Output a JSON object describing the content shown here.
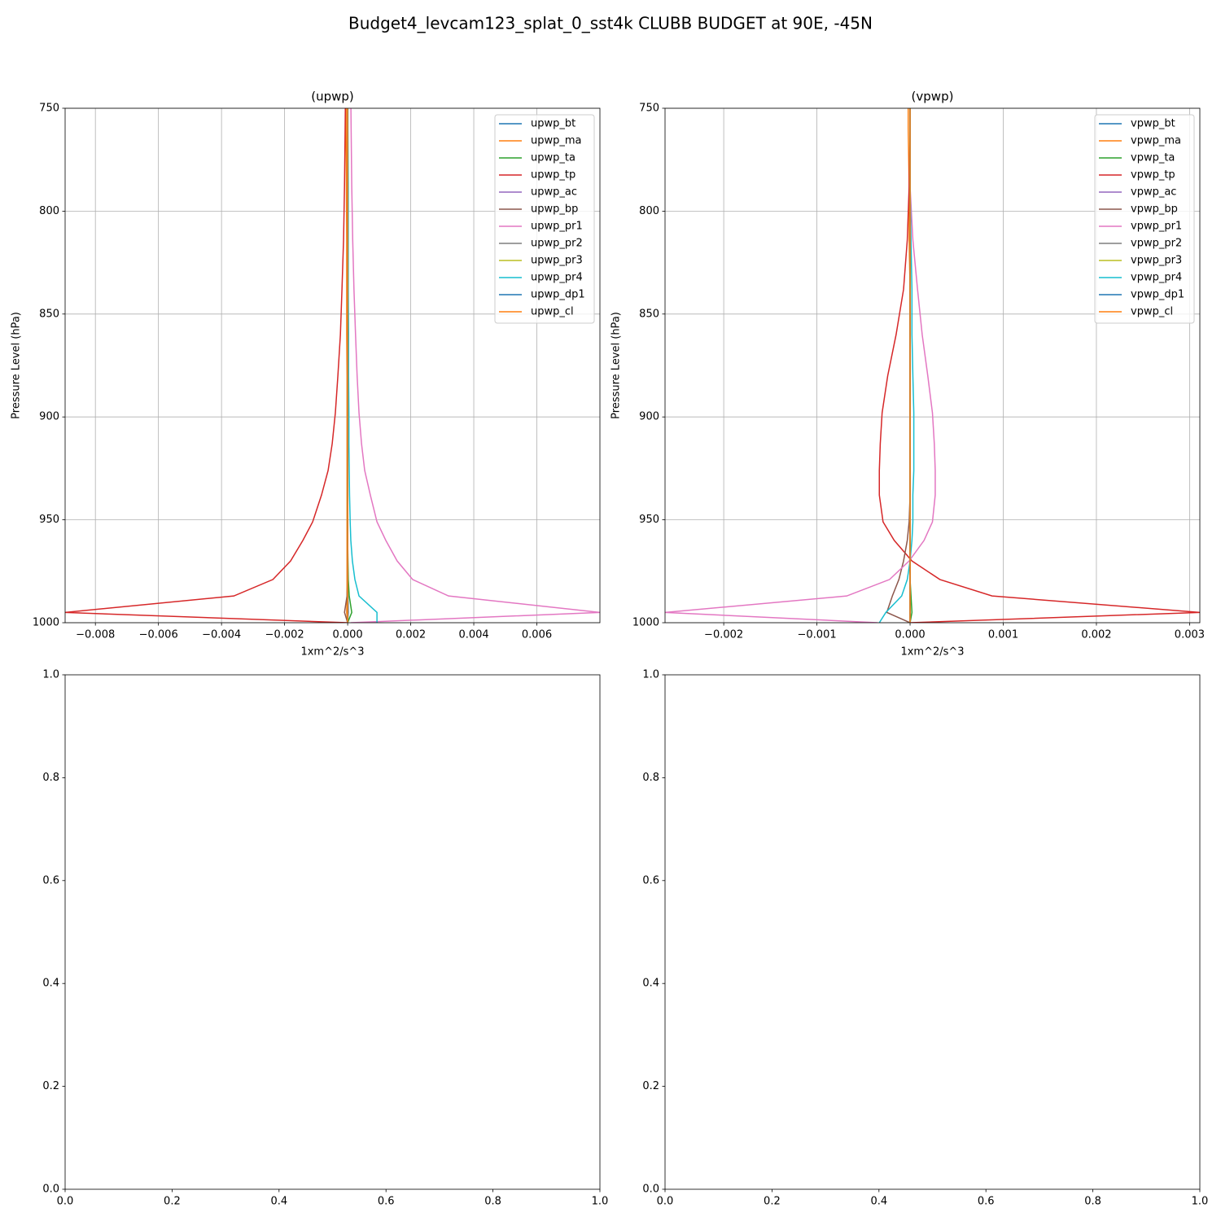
{
  "title": "Budget4_levcam123_splat_0_sst4k CLUBB BUDGET at 90E, -45N",
  "chart_data": [
    {
      "type": "line",
      "title": "(upwp)",
      "xlabel": "1xm^2/s^3",
      "ylabel": "Pressure Level (hPa)",
      "xlim": [
        -0.00896,
        0.008
      ],
      "ylim": [
        1000,
        750
      ],
      "xticks": [
        {
          "value": -0.008,
          "label": "−0.008"
        },
        {
          "value": -0.006,
          "label": "−0.006"
        },
        {
          "value": -0.004,
          "label": "−0.004"
        },
        {
          "value": -0.002,
          "label": "−0.002"
        },
        {
          "value": 0,
          "label": "0.000"
        },
        0.002,
        0.004,
        0.006
      ],
      "yticks": [
        750,
        800,
        850,
        900,
        950,
        1000
      ],
      "grid": true,
      "legend": "upper right",
      "y": [
        1000,
        995,
        987,
        979,
        970,
        960,
        951,
        938,
        926,
        913,
        898,
        880,
        860,
        838,
        814,
        788,
        760,
        745
      ],
      "series": [
        {
          "name": "upwp_bt",
          "color": "#1f77b4",
          "values": [
            0,
            2e-05,
            1e-05,
            0,
            0,
            0,
            0,
            0,
            0,
            0,
            0,
            0,
            0,
            0,
            0,
            0,
            0,
            0
          ]
        },
        {
          "name": "upwp_ma",
          "color": "#ff7f0e",
          "values": [
            0,
            -3e-05,
            -2e-05,
            -2e-05,
            -2e-05,
            -2e-05,
            -2e-05,
            -2e-05,
            -2e-05,
            -2e-05,
            -2e-05,
            -2e-05,
            -3e-05,
            -3e-05,
            -3e-05,
            -4e-05,
            -5e-05,
            -5e-05
          ]
        },
        {
          "name": "upwp_ta",
          "color": "#2ca02c",
          "values": [
            0,
            0.00013,
            5e-05,
            2e-05,
            1e-05,
            0,
            0,
            0,
            0,
            0,
            0,
            0,
            0,
            0,
            0,
            0,
            0,
            0
          ]
        },
        {
          "name": "upwp_tp",
          "color": "#d62728",
          "values": [
            0,
            -0.00896,
            -0.00361,
            -0.00237,
            -0.00181,
            -0.00142,
            -0.00111,
            -0.00083,
            -0.00062,
            -0.00049,
            -0.00039,
            -0.00031,
            -0.00023,
            -0.00018,
            -0.00013,
            -0.0001,
            -8e-05,
            -7e-05
          ]
        },
        {
          "name": "upwp_ac",
          "color": "#9467bd",
          "values": [
            0,
            0,
            0,
            0,
            0,
            0,
            0,
            0,
            0,
            0,
            0,
            0,
            0,
            0,
            0,
            0,
            0,
            0
          ]
        },
        {
          "name": "upwp_bp",
          "color": "#8c564b",
          "values": [
            0,
            -0.0001,
            -2e-05,
            0,
            0,
            0,
            0,
            0,
            0,
            0,
            0,
            0,
            0,
            0,
            0,
            0,
            0,
            0
          ]
        },
        {
          "name": "upwp_pr1",
          "color": "#e377c2",
          "values": [
            0.0001,
            0.008,
            0.0032,
            0.00206,
            0.00157,
            0.00121,
            0.00093,
            0.00072,
            0.00054,
            0.00044,
            0.00036,
            0.0003,
            0.00025,
            0.0002,
            0.00016,
            0.00013,
            0.00011,
            0.0001
          ]
        },
        {
          "name": "upwp_pr2",
          "color": "#7f7f7f",
          "values": [
            0,
            0,
            0,
            0,
            0,
            0,
            0,
            0,
            0,
            0,
            0,
            0,
            0,
            0,
            0,
            0,
            0,
            0
          ]
        },
        {
          "name": "upwp_pr3",
          "color": "#bcbd22",
          "values": [
            0,
            0,
            0,
            0,
            0,
            0,
            0,
            0,
            0,
            0,
            0,
            0,
            0,
            0,
            0,
            0,
            0,
            0
          ]
        },
        {
          "name": "upwp_pr4",
          "color": "#17becf",
          "values": [
            0.00093,
            0.00093,
            0.00036,
            0.00023,
            0.00015,
            0.0001,
            8e-05,
            6e-05,
            5e-05,
            4e-05,
            4e-05,
            3e-05,
            3e-05,
            2e-05,
            2e-05,
            2e-05,
            1e-05,
            1e-05
          ]
        },
        {
          "name": "upwp_dp1",
          "color": "#1f77b4",
          "values": [
            0,
            0,
            0,
            0,
            0,
            0,
            0,
            0,
            0,
            0,
            0,
            0,
            0,
            0,
            0,
            0,
            0,
            0
          ]
        },
        {
          "name": "upwp_cl",
          "color": "#ff7f0e",
          "values": [
            0,
            0,
            0,
            0,
            0,
            0,
            0,
            0,
            0,
            0,
            0,
            0,
            0,
            0,
            0,
            0,
            0,
            0
          ]
        }
      ]
    },
    {
      "type": "line",
      "title": "(vpwp)",
      "xlabel": "1xm^2/s^3",
      "ylabel": "Pressure Level (hPa)",
      "xlim": [
        -0.00263,
        0.00311
      ],
      "ylim": [
        1000,
        750
      ],
      "xticks": [
        {
          "value": -0.002,
          "label": "−0.002"
        },
        {
          "value": -0.001,
          "label": "−0.001"
        },
        {
          "value": 0,
          "label": "0.000"
        },
        0.001,
        0.002,
        0.003
      ],
      "yticks": [
        750,
        800,
        850,
        900,
        950,
        1000
      ],
      "grid": true,
      "legend": "upper right",
      "y": [
        1000,
        995,
        987,
        979,
        970,
        960,
        951,
        938,
        926,
        913,
        898,
        880,
        860,
        838,
        814,
        788,
        760,
        745
      ],
      "series": [
        {
          "name": "vpwp_bt",
          "color": "#1f77b4",
          "values": [
            0,
            0,
            0,
            0,
            0,
            0,
            0,
            0,
            0,
            0,
            0,
            0,
            0,
            0,
            0,
            0,
            0,
            0
          ]
        },
        {
          "name": "vpwp_ma",
          "color": "#ff7f0e",
          "values": [
            0,
            0,
            0,
            0,
            0,
            0,
            0,
            0,
            0,
            0,
            0,
            0,
            0,
            0,
            -1e-05,
            -1e-05,
            -2e-05,
            -2e-05
          ]
        },
        {
          "name": "vpwp_ta",
          "color": "#2ca02c",
          "values": [
            0,
            2e-05,
            1e-05,
            0,
            0,
            0,
            0,
            0,
            0,
            0,
            0,
            0,
            0,
            0,
            0,
            0,
            0,
            0
          ]
        },
        {
          "name": "vpwp_tp",
          "color": "#d62728",
          "values": [
            0,
            0.00311,
            0.00088,
            0.00032,
            2e-05,
            -0.00017,
            -0.00029,
            -0.00033,
            -0.00033,
            -0.00032,
            -0.0003,
            -0.00024,
            -0.00015,
            -7e-05,
            -3e-05,
            -1e-05,
            0,
            0
          ]
        },
        {
          "name": "vpwp_ac",
          "color": "#9467bd",
          "values": [
            0,
            0,
            0,
            0,
            0,
            0,
            0,
            0,
            0,
            0,
            0,
            0,
            0,
            0,
            0,
            0,
            0,
            0
          ]
        },
        {
          "name": "vpwp_bp",
          "color": "#8c564b",
          "values": [
            0,
            -0.00025,
            -0.00019,
            -0.00012,
            -7e-05,
            -3e-05,
            -1e-05,
            0,
            0,
            0,
            0,
            0,
            0,
            0,
            0,
            0,
            0,
            0
          ]
        },
        {
          "name": "vpwp_pr1",
          "color": "#e377c2",
          "values": [
            -0.00035,
            -0.00263,
            -0.00068,
            -0.00022,
            -1e-05,
            0.00015,
            0.00024,
            0.00027,
            0.00027,
            0.00026,
            0.00024,
            0.00019,
            0.00013,
            8e-05,
            3e-05,
            0,
            0,
            0
          ]
        },
        {
          "name": "vpwp_pr2",
          "color": "#7f7f7f",
          "values": [
            0,
            0,
            0,
            0,
            0,
            0,
            0,
            0,
            0,
            0,
            0,
            0,
            0,
            0,
            0,
            0,
            0,
            0
          ]
        },
        {
          "name": "vpwp_pr3",
          "color": "#bcbd22",
          "values": [
            0,
            0,
            0,
            0,
            0,
            0,
            0,
            0,
            0,
            0,
            0,
            0,
            0,
            0,
            0,
            0,
            0,
            0
          ]
        },
        {
          "name": "vpwp_pr4",
          "color": "#17becf",
          "values": [
            -0.00033,
            -0.00026,
            -9e-05,
            -3e-05,
            0,
            2e-05,
            3e-05,
            3e-05,
            4e-05,
            4e-05,
            4e-05,
            3e-05,
            2e-05,
            2e-05,
            1e-05,
            0,
            0,
            0
          ]
        },
        {
          "name": "vpwp_dp1",
          "color": "#1f77b4",
          "values": [
            0,
            0,
            0,
            0,
            0,
            0,
            0,
            0,
            0,
            0,
            0,
            0,
            0,
            0,
            0,
            0,
            0,
            0
          ]
        },
        {
          "name": "vpwp_cl",
          "color": "#ff7f0e",
          "values": [
            0,
            0,
            0,
            0,
            0,
            0,
            0,
            0,
            0,
            0,
            0,
            0,
            0,
            0,
            0,
            0,
            0,
            0
          ]
        }
      ]
    },
    {
      "type": "line",
      "xlim": [
        0,
        1
      ],
      "ylim": [
        0,
        1
      ],
      "xticks": [
        {
          "value": 0,
          "label": "0.0"
        },
        0.2,
        0.4,
        0.6,
        0.8,
        {
          "value": 1,
          "label": "1.0"
        }
      ],
      "yticks": [
        {
          "value": 0,
          "label": "0.0"
        },
        0.2,
        0.4,
        0.6,
        0.8,
        {
          "value": 1,
          "label": "1.0"
        }
      ],
      "grid": false
    },
    {
      "type": "line",
      "xlim": [
        0,
        1
      ],
      "ylim": [
        0,
        1
      ],
      "xticks": [
        {
          "value": 0,
          "label": "0.0"
        },
        0.2,
        0.4,
        0.6,
        0.8,
        {
          "value": 1,
          "label": "1.0"
        }
      ],
      "yticks": [
        {
          "value": 0,
          "label": "0.0"
        },
        0.2,
        0.4,
        0.6,
        0.8,
        {
          "value": 1,
          "label": "1.0"
        }
      ],
      "grid": false
    }
  ]
}
